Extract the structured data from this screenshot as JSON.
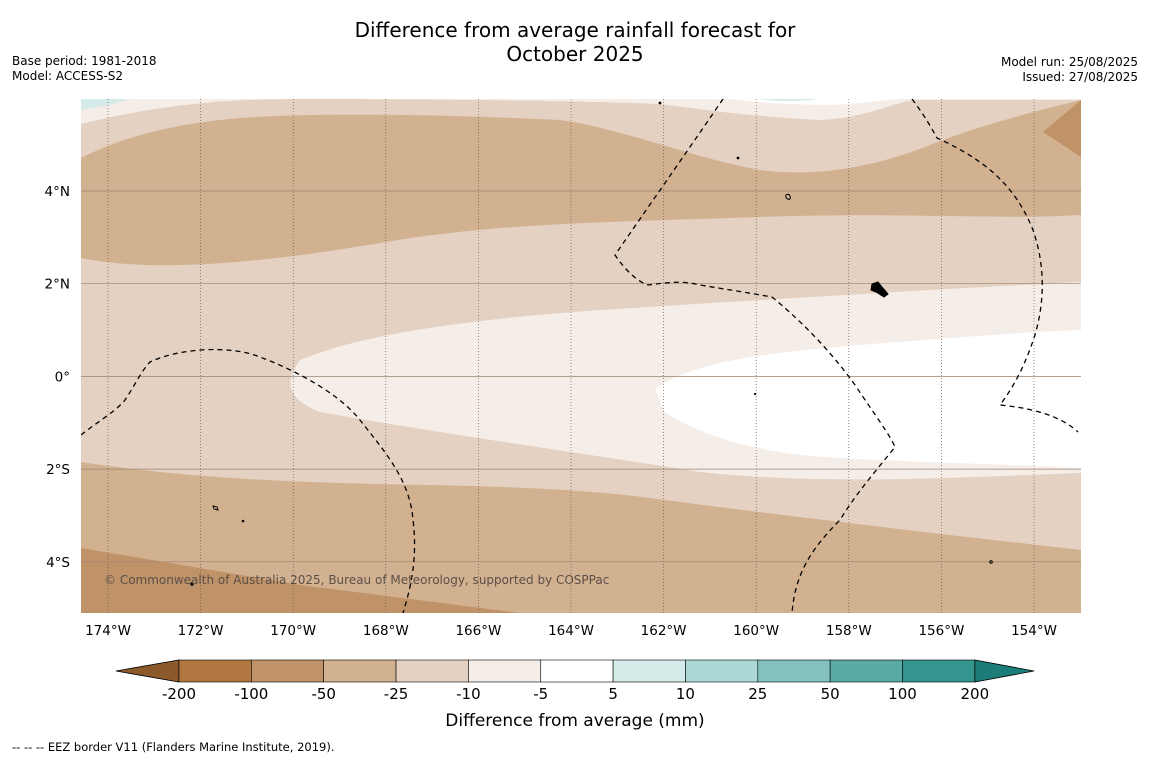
{
  "header": {
    "title_line1": "Difference from average rainfall forecast for",
    "title_line2": "October 2025",
    "base_period": "Base period: 1981-2018",
    "model": "Model: ACCESS-S2",
    "model_run": "Model run: 25/08/2025",
    "issued": "Issued: 27/08/2025"
  },
  "map": {
    "copyright": "© Commonwealth of Australia 2025, Bureau of Meteorology, supported by COSPPac",
    "lon_labels": [
      "174°W",
      "172°W",
      "170°W",
      "168°W",
      "166°W",
      "164°W",
      "162°W",
      "160°W",
      "158°W",
      "156°W",
      "154°W"
    ],
    "lat_labels": [
      "4°N",
      "2°N",
      "0°",
      "2°S",
      "4°S"
    ]
  },
  "colorbar": {
    "title": "Difference from average (mm)",
    "tick_labels": [
      "-200",
      "-100",
      "-50",
      "-25",
      "-10",
      "-5",
      "5",
      "10",
      "25",
      "50",
      "100",
      "200"
    ],
    "colors": [
      "#8c5a2a",
      "#b07840",
      "#c09268",
      "#d2b191",
      "#e4d1c1",
      "#f5ede8",
      "#ffffff",
      "#d4ebe9",
      "#acd8d6",
      "#82c1be",
      "#5aaaa7",
      "#34958f",
      "#1c7d78"
    ]
  },
  "footer": {
    "legend_line": "--  --  -- EEZ border V11 (Flanders Marine Institute, 2019)."
  }
}
